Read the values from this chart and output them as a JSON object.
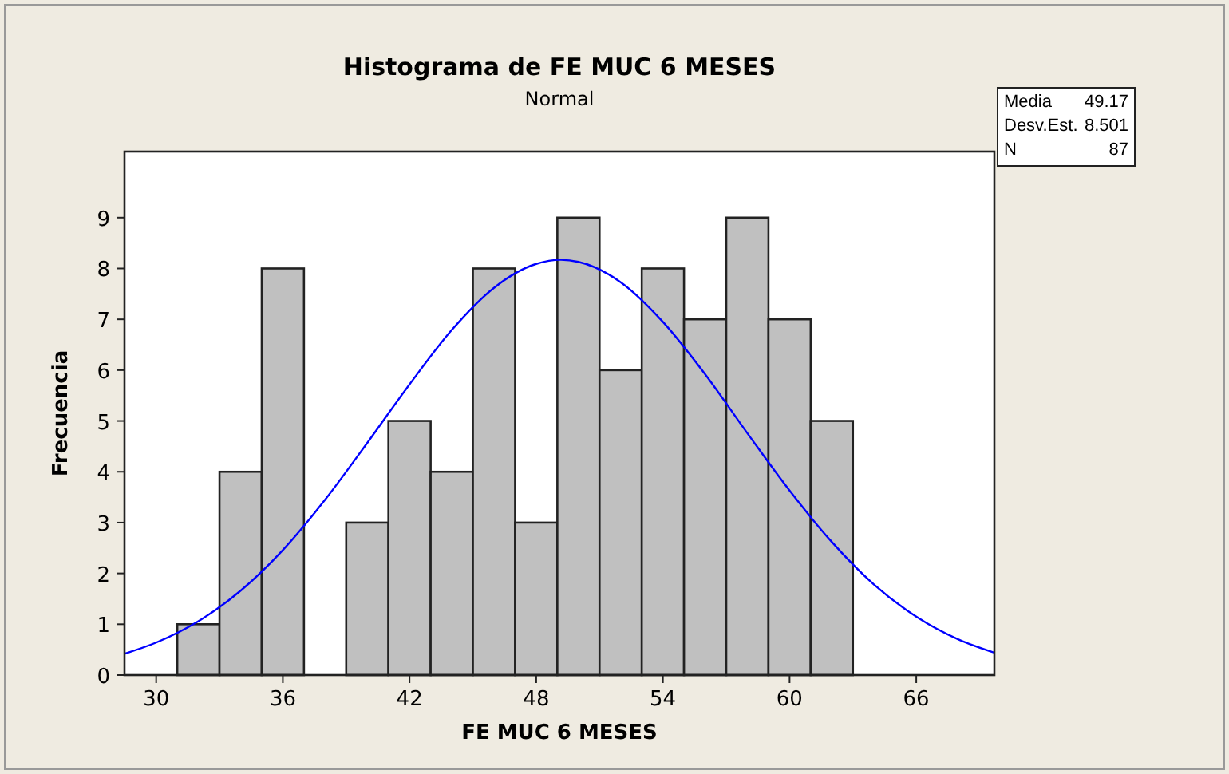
{
  "chart_data": {
    "type": "histogram",
    "title": "Histograma de FE MUC 6 MESES",
    "subtitle": "Normal",
    "xlabel": "FE MUC 6 MESES",
    "ylabel": "Frecuencia",
    "bins": [
      31,
      33,
      35,
      37,
      39,
      41,
      43,
      45,
      47,
      49,
      51,
      53,
      55,
      57,
      59,
      61,
      63
    ],
    "values": [
      1,
      4,
      8,
      0,
      3,
      5,
      4,
      8,
      3,
      9,
      6,
      8,
      7,
      9,
      7,
      5
    ],
    "color": "#c0c0c0",
    "series": [
      {
        "type": "line",
        "color": "#0000ff",
        "x": [
          28.5,
          30,
          32,
          34,
          36,
          38,
          40,
          42,
          44,
          46,
          48,
          49.17,
          50,
          52,
          54,
          56,
          58,
          60,
          62,
          64,
          66,
          68,
          69.7
        ],
        "values": [
          0.42,
          0.64,
          1.06,
          1.66,
          2.46,
          3.45,
          4.57,
          5.72,
          6.79,
          7.62,
          8.09,
          8.17,
          8.13,
          7.73,
          6.95,
          5.92,
          4.76,
          3.63,
          2.62,
          1.78,
          1.15,
          0.7,
          0.44
        ]
      }
    ],
    "xlim": [
      28.5,
      69.7
    ],
    "xticks": [
      30,
      36,
      42,
      48,
      54,
      60,
      66
    ],
    "ylim": [
      0,
      10.3
    ],
    "yticks": [
      0,
      1,
      2,
      3,
      4,
      5,
      6,
      7,
      8,
      9
    ],
    "annotations": [
      "Media",
      "49.17",
      "Desv.Est.",
      "8.501",
      "N",
      "87"
    ]
  }
}
